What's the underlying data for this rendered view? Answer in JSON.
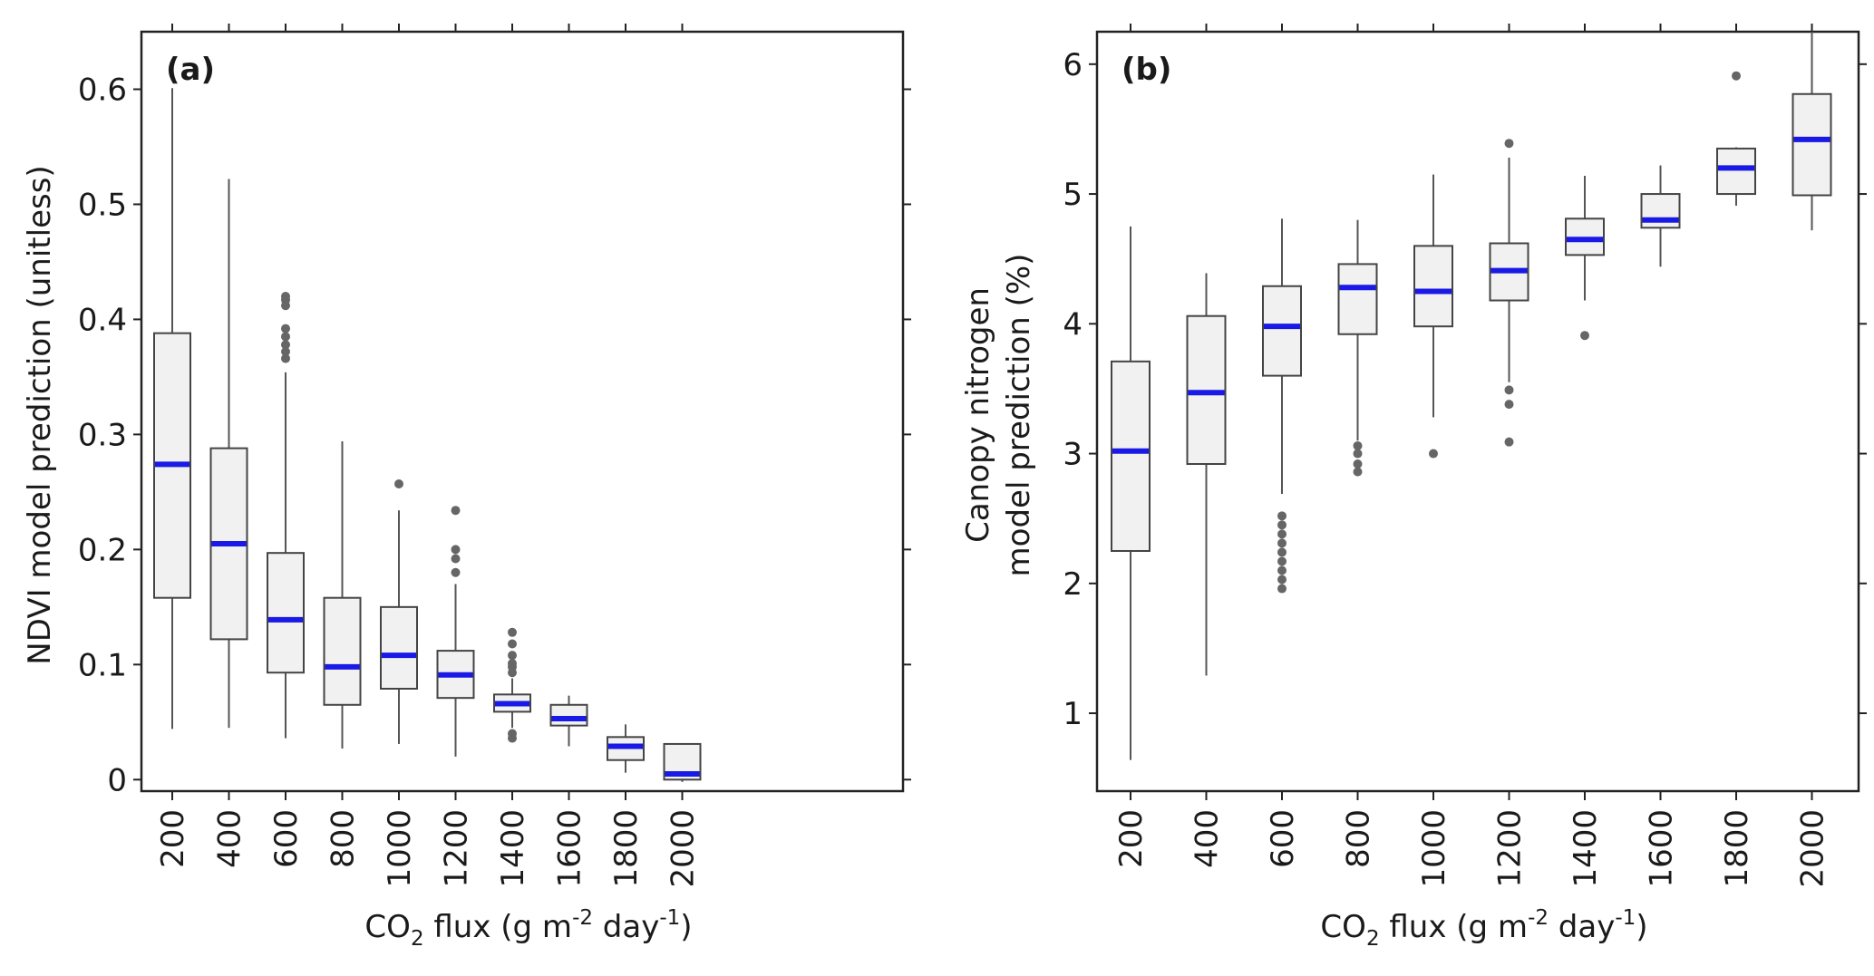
{
  "chart_data": [
    {
      "type": "box",
      "panel_label": "(a)",
      "xlabel": "CO2 flux (g m-2 day-1)",
      "ylabel": "NDVI model prediction (unitless)",
      "categories": [
        "200",
        "400",
        "600",
        "800",
        "1000",
        "1200",
        "1400",
        "1600",
        "1800",
        "2000"
      ],
      "yticks": [
        "0",
        "0.1",
        "0.2",
        "0.3",
        "0.4",
        "0.5",
        "0.6"
      ],
      "ylim": [
        -0.01,
        0.65
      ],
      "median_color": "#1a1ae6",
      "boxes": [
        {
          "min": 0.044,
          "q1": 0.158,
          "median": 0.274,
          "q3": 0.388,
          "max": 0.601,
          "outliers": []
        },
        {
          "min": 0.045,
          "q1": 0.122,
          "median": 0.205,
          "q3": 0.288,
          "max": 0.522,
          "outliers": []
        },
        {
          "min": 0.036,
          "q1": 0.093,
          "median": 0.139,
          "q3": 0.197,
          "max": 0.354,
          "outliers": [
            0.366,
            0.372,
            0.378,
            0.385,
            0.392,
            0.412,
            0.417,
            0.42
          ]
        },
        {
          "min": 0.027,
          "q1": 0.065,
          "median": 0.098,
          "q3": 0.158,
          "max": 0.294,
          "outliers": []
        },
        {
          "min": 0.031,
          "q1": 0.079,
          "median": 0.108,
          "q3": 0.15,
          "max": 0.234,
          "outliers": [
            0.257
          ]
        },
        {
          "min": 0.02,
          "q1": 0.071,
          "median": 0.091,
          "q3": 0.112,
          "max": 0.17,
          "outliers": [
            0.18,
            0.192,
            0.2,
            0.234
          ]
        },
        {
          "min": 0.045,
          "q1": 0.059,
          "median": 0.066,
          "q3": 0.074,
          "max": 0.088,
          "outliers": [
            0.093,
            0.098,
            0.101,
            0.108,
            0.118,
            0.128,
            0.036,
            0.04
          ]
        },
        {
          "min": 0.029,
          "q1": 0.047,
          "median": 0.053,
          "q3": 0.065,
          "max": 0.073,
          "outliers": []
        },
        {
          "min": 0.006,
          "q1": 0.017,
          "median": 0.029,
          "q3": 0.037,
          "max": 0.048,
          "outliers": []
        },
        {
          "min": -0.002,
          "q1": 0.0,
          "median": 0.005,
          "q3": 0.031,
          "max": 0.031,
          "outliers": []
        }
      ]
    },
    {
      "type": "box",
      "panel_label": "(b)",
      "xlabel": "CO2 flux (g m-2 day-1)",
      "ylabel_line1": "Canopy nitrogen",
      "ylabel_line2": "model prediction (%)",
      "categories": [
        "200",
        "400",
        "600",
        "800",
        "1000",
        "1200",
        "1400",
        "1600",
        "1800",
        "2000"
      ],
      "yticks": [
        "1",
        "2",
        "3",
        "4",
        "5",
        "6"
      ],
      "ylim": [
        0.4,
        6.25
      ],
      "median_color": "#1a1ae6",
      "boxes": [
        {
          "min": 0.64,
          "q1": 2.25,
          "median": 3.02,
          "q3": 3.71,
          "max": 4.75,
          "outliers": []
        },
        {
          "min": 1.29,
          "q1": 2.92,
          "median": 3.47,
          "q3": 4.06,
          "max": 4.39,
          "outliers": []
        },
        {
          "min": 2.69,
          "q1": 3.6,
          "median": 3.98,
          "q3": 4.29,
          "max": 4.81,
          "outliers": [
            1.96,
            2.03,
            2.1,
            2.17,
            2.24,
            2.31,
            2.38,
            2.45,
            2.52
          ]
        },
        {
          "min": 3.1,
          "q1": 3.92,
          "median": 4.28,
          "q3": 4.46,
          "max": 4.8,
          "outliers": [
            2.86,
            2.92,
            3.0,
            3.06
          ]
        },
        {
          "min": 3.28,
          "q1": 3.98,
          "median": 4.25,
          "q3": 4.6,
          "max": 5.15,
          "outliers": [
            3.0
          ]
        },
        {
          "min": 3.55,
          "q1": 4.18,
          "median": 4.41,
          "q3": 4.62,
          "max": 5.28,
          "outliers": [
            3.09,
            3.38,
            3.49,
            5.39
          ]
        },
        {
          "min": 4.18,
          "q1": 4.53,
          "median": 4.65,
          "q3": 4.81,
          "max": 5.14,
          "outliers": [
            3.91
          ]
        },
        {
          "min": 4.44,
          "q1": 4.74,
          "median": 4.8,
          "q3": 5.0,
          "max": 5.22,
          "outliers": []
        },
        {
          "min": 4.91,
          "q1": 5.0,
          "median": 5.2,
          "q3": 5.35,
          "max": 5.36,
          "outliers": [
            5.91
          ]
        },
        {
          "min": 4.72,
          "q1": 4.99,
          "median": 5.42,
          "q3": 5.77,
          "max": 6.25,
          "outliers": []
        }
      ]
    }
  ]
}
